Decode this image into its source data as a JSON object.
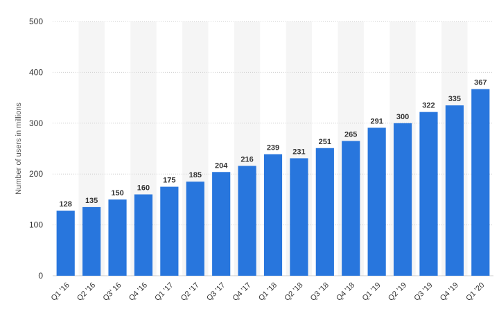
{
  "chart_data": {
    "type": "bar",
    "categories": [
      "Q1 '16",
      "Q2 '16",
      "Q3' 16",
      "Q4 '16",
      "Q1 '17",
      "Q2 '17",
      "Q3 '17",
      "Q4 '17",
      "Q1 '18",
      "Q2 '18",
      "Q3 '18",
      "Q4 '18",
      "Q1 '19",
      "Q2 '19",
      "Q3 '19",
      "Q4 '19",
      "Q1 '20"
    ],
    "values": [
      128,
      135,
      150,
      160,
      175,
      185,
      204,
      216,
      239,
      231,
      251,
      265,
      291,
      300,
      322,
      335,
      367
    ],
    "title": "",
    "xlabel": "",
    "ylabel": "Number of users in millions",
    "ylim": [
      0,
      500
    ],
    "yticks": [
      0,
      100,
      200,
      300,
      400,
      500
    ],
    "grid": true,
    "bar_color": "#2876dd",
    "alt_band_color": "#f5f5f5",
    "grid_color": "#cccccc"
  }
}
